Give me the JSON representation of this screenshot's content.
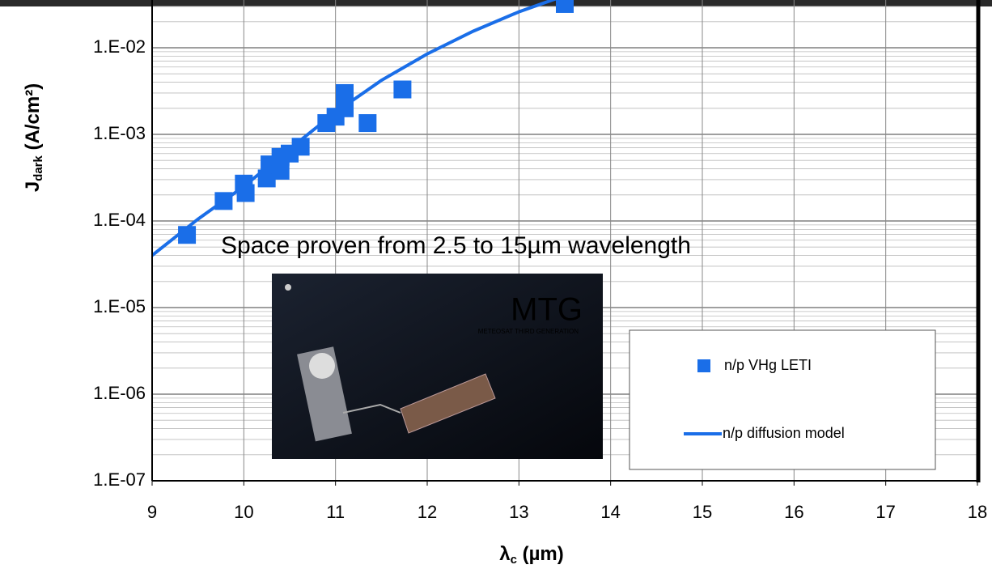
{
  "chart_data": {
    "type": "scatter",
    "ylabel": [
      "J",
      "dark",
      " (A/cm²)"
    ],
    "xlabel": [
      "λ",
      "c",
      " (µm)"
    ],
    "annotation": "Space proven from 2.5 to 15µm wavelength",
    "inset": {
      "title": "MTG",
      "subtitle": "METEOSAT THIRD GENERATION"
    },
    "xlim": [
      9,
      18
    ],
    "xticks": [
      9,
      10,
      11,
      12,
      13,
      14,
      15,
      16,
      17,
      18
    ],
    "ylim": [
      1e-07,
      0.1
    ],
    "log_y": true,
    "yticks": [
      {
        "value": 1e-07,
        "label": "1.E-07"
      },
      {
        "value": 1e-06,
        "label": "1.E-06"
      },
      {
        "value": 1e-05,
        "label": "1.E-05"
      },
      {
        "value": 0.0001,
        "label": "1.E-04"
      },
      {
        "value": 0.001,
        "label": "1.E-03"
      },
      {
        "value": 0.01,
        "label": "1.E-02"
      }
    ],
    "grid": true,
    "minor_grid": true,
    "legend": "lower-right",
    "series": [
      {
        "name": "n/p VHg LETI",
        "color": "#1a6ee8",
        "mark": "square",
        "x": [
          9.38,
          9.78,
          10.0,
          10.02,
          10.25,
          10.28,
          10.4,
          10.4,
          10.5,
          10.62,
          10.9,
          11.0,
          11.1,
          11.1,
          11.35,
          11.73,
          13.5
        ],
        "values": [
          6.9e-05,
          0.00017,
          0.00027,
          0.00021,
          0.00031,
          0.00045,
          0.00038,
          0.00055,
          0.0006,
          0.00072,
          0.00135,
          0.0016,
          0.002,
          0.003,
          0.00135,
          0.0033,
          0.032
        ]
      },
      {
        "name": "n/p diffusion model",
        "color": "#1a6ee8",
        "mark": "line",
        "x": [
          9,
          9.5,
          10,
          10.5,
          11,
          11.5,
          12,
          12.5,
          13,
          13.5,
          14
        ],
        "values": [
          4e-05,
          0.000105,
          0.00025,
          0.00068,
          0.0018,
          0.0042,
          0.0085,
          0.0155,
          0.026,
          0.04,
          0.06
        ]
      }
    ]
  }
}
